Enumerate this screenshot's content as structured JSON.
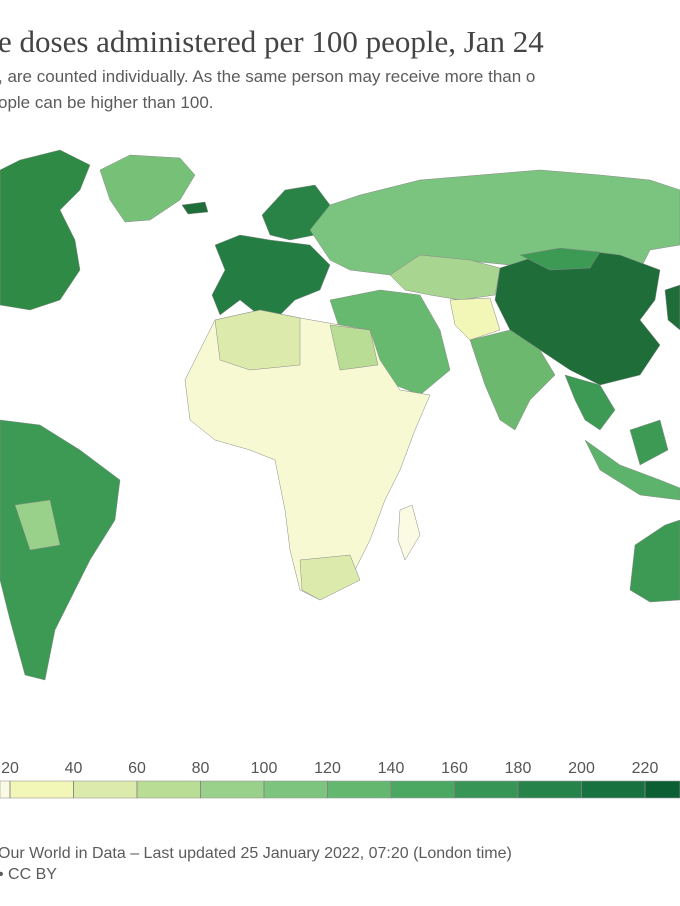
{
  "header": {
    "title": "e doses administered per 100 people, Jan 24",
    "subtitle_lines": [
      ", are counted individually. As the same person may receive more than o",
      "ople can be higher than 100."
    ]
  },
  "legend": {
    "ticks": [
      20,
      40,
      60,
      80,
      100,
      120,
      140,
      160,
      180,
      200,
      220
    ],
    "colors": [
      "#fbfbe4",
      "#f2f6b6",
      "#dcebab",
      "#b9dd95",
      "#9ad18a",
      "#7dc47e",
      "#63b76f",
      "#4ba862",
      "#379656",
      "#26844b",
      "#177240",
      "#0b5f33"
    ]
  },
  "footer": {
    "lines": [
      "Our World in Data – Last updated 25 January 2022, 07:20 (London time)",
      "• CC BY"
    ]
  }
}
